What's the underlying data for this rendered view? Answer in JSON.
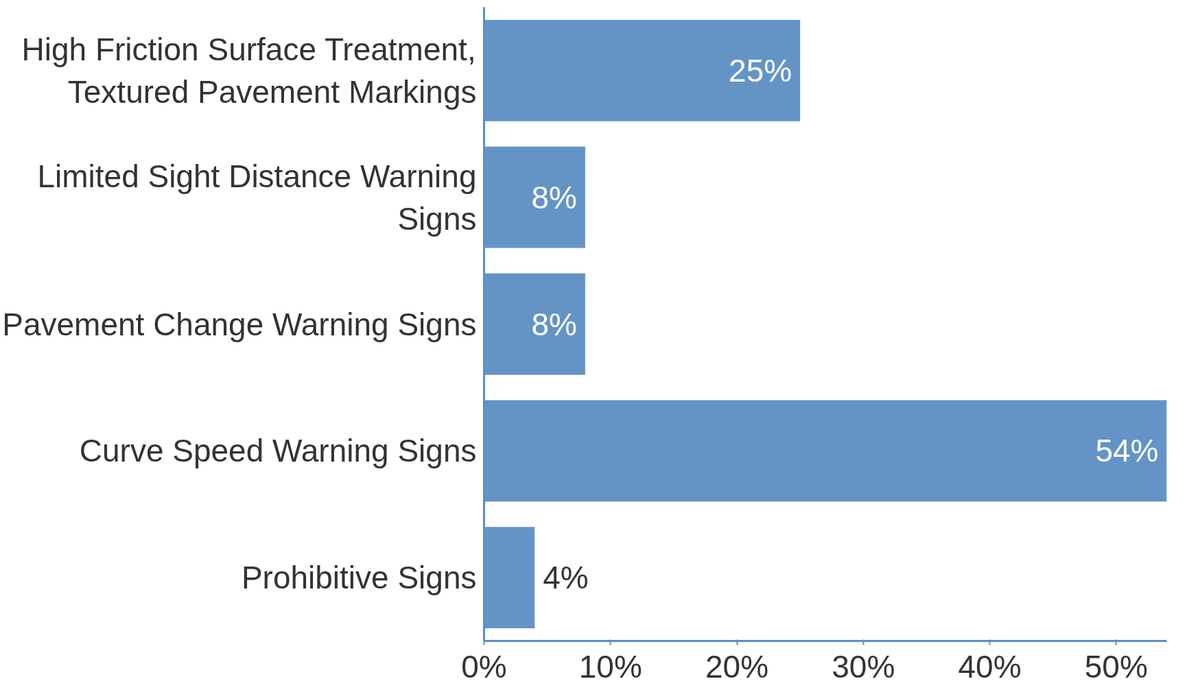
{
  "chart_data": {
    "type": "bar",
    "orientation": "horizontal",
    "categories": [
      "High Friction Surface Treatment, Textured Pavement Markings",
      "Limited Sight Distance Warning Signs",
      "Pavement Change Warning Signs",
      "Curve Speed Warning Signs",
      "Prohibitive Signs"
    ],
    "values": [
      25,
      8,
      8,
      54,
      4
    ],
    "value_labels": [
      "25%",
      "8%",
      "8%",
      "54%",
      "4%"
    ],
    "color": "#6394c5",
    "xlim": [
      0,
      54
    ],
    "xticks": [
      {
        "value": 0,
        "label": "0%"
      },
      {
        "value": 10,
        "label": "10%"
      },
      {
        "value": 20,
        "label": "20%"
      },
      {
        "value": 30,
        "label": "30%"
      },
      {
        "value": 40,
        "label": "40%"
      },
      {
        "value": 50,
        "label": "50%"
      }
    ],
    "grid": false
  }
}
